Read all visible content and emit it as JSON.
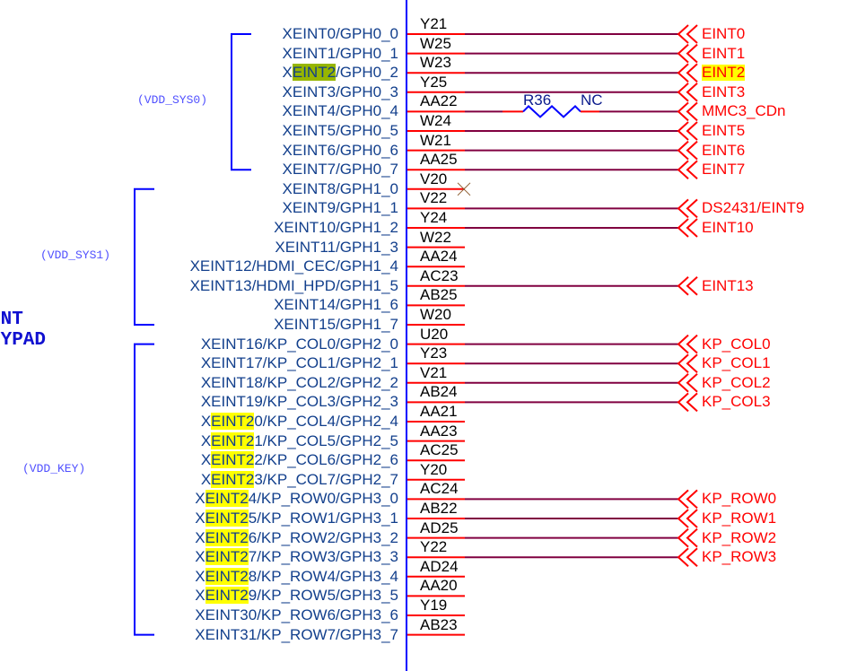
{
  "block_title": [
    "INT",
    "EYPAD"
  ],
  "groups": [
    {
      "label": "(VDD_SYS0)",
      "first_row": 0,
      "last_row": 7
    },
    {
      "label": "(VDD_SYS1)",
      "first_row": 8,
      "last_row": 15
    },
    {
      "label": "(VDD_KEY)",
      "first_row": 16,
      "last_row": 31
    }
  ],
  "resistor": {
    "ref": "R36",
    "value": "NC",
    "row": 4
  },
  "colors": {
    "bus": "#0000ff",
    "pin_stub": "#ff0000",
    "wire": "#800040",
    "net_label": "#ff0000",
    "pin_name": "#123f8c",
    "resistor": "#0000ff",
    "highlight_yellow": "#ffff00",
    "highlight_green": "#97b600"
  },
  "rows": [
    {
      "signal": "XEINT0/GPH0_0",
      "pin": "Y21",
      "net": "EINT0"
    },
    {
      "signal": "XEINT1/GPH0_1",
      "pin": "W25",
      "net": "EINT1"
    },
    {
      "signal": "XEINT2/GPH0_2",
      "pin": "W23",
      "net": "EINT2",
      "highlight": "EINT2",
      "highlight_color": "green",
      "net_highlight": true
    },
    {
      "signal": "XEINT3/GPH0_3",
      "pin": "Y25",
      "net": "EINT3"
    },
    {
      "signal": "XEINT4/GPH0_4",
      "pin": "AA22",
      "net": "MMC3_CDn"
    },
    {
      "signal": "XEINT5/GPH0_5",
      "pin": "W24",
      "net": "EINT5"
    },
    {
      "signal": "XEINT6/GPH0_6",
      "pin": "W21",
      "net": "EINT6"
    },
    {
      "signal": "XEINT7/GPH0_7",
      "pin": "AA25",
      "net": "EINT7"
    },
    {
      "signal": "XEINT8/GPH1_0",
      "pin": "V20",
      "no_connect": true
    },
    {
      "signal": "XEINT9/GPH1_1",
      "pin": "V22",
      "net": "DS2431/EINT9"
    },
    {
      "signal": "XEINT10/GPH1_2",
      "pin": "Y24",
      "net": "EINT10"
    },
    {
      "signal": "XEINT11/GPH1_3",
      "pin": "W22"
    },
    {
      "signal": "XEINT12/HDMI_CEC/GPH1_4",
      "pin": "AA24"
    },
    {
      "signal": "XEINT13/HDMI_HPD/GPH1_5",
      "pin": "AC23",
      "net": "EINT13"
    },
    {
      "signal": "XEINT14/GPH1_6",
      "pin": "AB25"
    },
    {
      "signal": "XEINT15/GPH1_7",
      "pin": "W20"
    },
    {
      "signal": "XEINT16/KP_COL0/GPH2_0",
      "pin": "U20",
      "net": "KP_COL0"
    },
    {
      "signal": "XEINT17/KP_COL1/GPH2_1",
      "pin": "Y23",
      "net": "KP_COL1"
    },
    {
      "signal": "XEINT18/KP_COL2/GPH2_2",
      "pin": "V21",
      "net": "KP_COL2"
    },
    {
      "signal": "XEINT19/KP_COL3/GPH2_3",
      "pin": "AB24",
      "net": "KP_COL3"
    },
    {
      "signal": "XEINT20/KP_COL4/GPH2_4",
      "pin": "AA21",
      "highlight": "EINT2",
      "highlight_color": "yellow"
    },
    {
      "signal": "XEINT21/KP_COL5/GPH2_5",
      "pin": "AA23",
      "highlight": "EINT2",
      "highlight_color": "yellow"
    },
    {
      "signal": "XEINT22/KP_COL6/GPH2_6",
      "pin": "AC25",
      "highlight": "EINT2",
      "highlight_color": "yellow"
    },
    {
      "signal": "XEINT23/KP_COL7/GPH2_7",
      "pin": "Y20",
      "highlight": "EINT2",
      "highlight_color": "yellow"
    },
    {
      "signal": "XEINT24/KP_ROW0/GPH3_0",
      "pin": "AC24",
      "net": "KP_ROW0",
      "highlight": "EINT2",
      "highlight_color": "yellow"
    },
    {
      "signal": "XEINT25/KP_ROW1/GPH3_1",
      "pin": "AB22",
      "net": "KP_ROW1",
      "highlight": "EINT2",
      "highlight_color": "yellow"
    },
    {
      "signal": "XEINT26/KP_ROW2/GPH3_2",
      "pin": "AD25",
      "net": "KP_ROW2",
      "highlight": "EINT2",
      "highlight_color": "yellow"
    },
    {
      "signal": "XEINT27/KP_ROW3/GPH3_3",
      "pin": "Y22",
      "net": "KP_ROW3",
      "highlight": "EINT2",
      "highlight_color": "yellow"
    },
    {
      "signal": "XEINT28/KP_ROW4/GPH3_4",
      "pin": "AD24",
      "highlight": "EINT2",
      "highlight_color": "yellow"
    },
    {
      "signal": "XEINT29/KP_ROW5/GPH3_5",
      "pin": "AA20",
      "highlight": "EINT2",
      "highlight_color": "yellow"
    },
    {
      "signal": "XEINT30/KP_ROW6/GPH3_6",
      "pin": "Y19"
    },
    {
      "signal": "XEINT31/KP_ROW7/GPH3_7",
      "pin": "AB23"
    }
  ]
}
